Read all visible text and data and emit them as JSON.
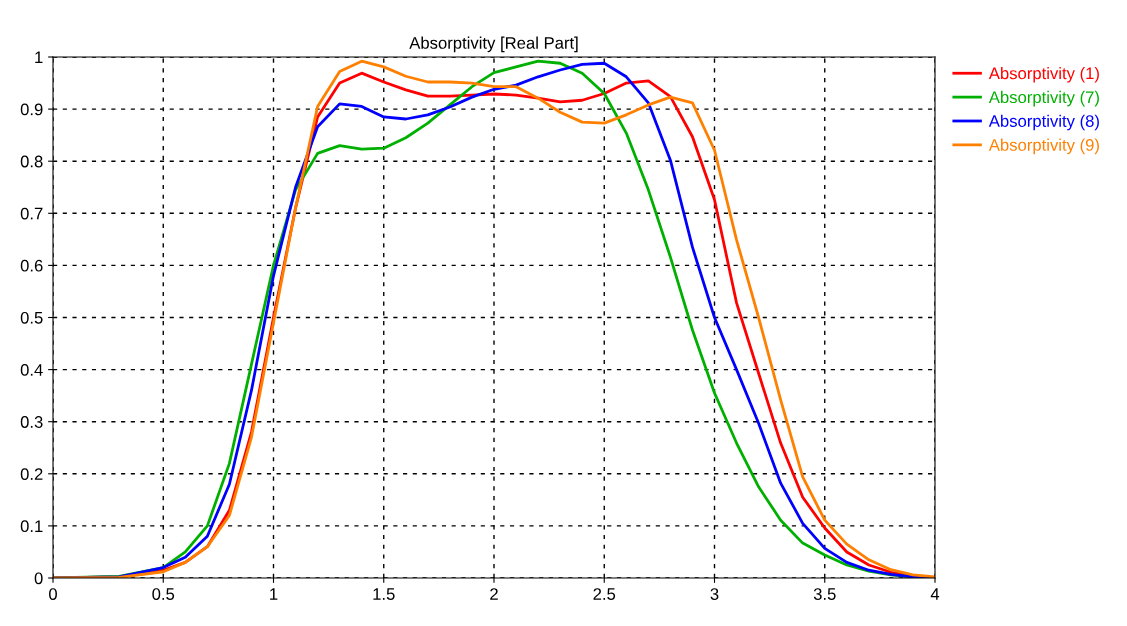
{
  "chart_data": {
    "type": "line",
    "title": "Absorptivity [Real Part]",
    "x": [
      0,
      0.3,
      0.5,
      0.6,
      0.7,
      0.8,
      0.9,
      1.0,
      1.1,
      1.2,
      1.3,
      1.4,
      1.5,
      1.6,
      1.7,
      1.8,
      1.9,
      2.0,
      2.1,
      2.2,
      2.3,
      2.4,
      2.5,
      2.6,
      2.7,
      2.8,
      2.9,
      3.0,
      3.1,
      3.2,
      3.3,
      3.4,
      3.5,
      3.6,
      3.7,
      3.8,
      3.9,
      4.0
    ],
    "series": [
      {
        "name": "Absorptivity (1)",
        "color": "#ff0000",
        "values": [
          0,
          0.002,
          0.015,
          0.03,
          0.06,
          0.13,
          0.28,
          0.5,
          0.71,
          0.885,
          0.95,
          0.969,
          0.952,
          0.937,
          0.925,
          0.925,
          0.927,
          0.929,
          0.927,
          0.921,
          0.914,
          0.917,
          0.93,
          0.95,
          0.954,
          0.924,
          0.847,
          0.726,
          0.528,
          0.393,
          0.259,
          0.155,
          0.096,
          0.05,
          0.025,
          0.011,
          0.004,
          0
        ]
      },
      {
        "name": "Absorptivity (7)",
        "color": "#00b000",
        "values": [
          0,
          0.003,
          0.02,
          0.05,
          0.1,
          0.22,
          0.41,
          0.6,
          0.745,
          0.815,
          0.83,
          0.823,
          0.825,
          0.845,
          0.873,
          0.908,
          0.943,
          0.97,
          0.981,
          0.992,
          0.988,
          0.969,
          0.93,
          0.854,
          0.745,
          0.616,
          0.476,
          0.355,
          0.259,
          0.175,
          0.111,
          0.067,
          0.044,
          0.025,
          0.013,
          0.006,
          0.002,
          0
        ]
      },
      {
        "name": "Absorptivity (8)",
        "color": "#0000ff",
        "values": [
          0,
          0.002,
          0.02,
          0.04,
          0.08,
          0.18,
          0.36,
          0.58,
          0.75,
          0.866,
          0.91,
          0.905,
          0.885,
          0.881,
          0.889,
          0.904,
          0.923,
          0.938,
          0.946,
          0.962,
          0.975,
          0.986,
          0.988,
          0.962,
          0.912,
          0.802,
          0.635,
          0.5,
          0.4,
          0.297,
          0.182,
          0.105,
          0.057,
          0.03,
          0.015,
          0.007,
          0.002,
          0
        ]
      },
      {
        "name": "Absorptivity (9)",
        "color": "#ff8000",
        "values": [
          0,
          0.001,
          0.012,
          0.03,
          0.06,
          0.12,
          0.27,
          0.49,
          0.71,
          0.905,
          0.972,
          0.992,
          0.981,
          0.963,
          0.952,
          0.952,
          0.95,
          0.943,
          0.943,
          0.921,
          0.894,
          0.875,
          0.873,
          0.889,
          0.908,
          0.923,
          0.912,
          0.821,
          0.649,
          0.5,
          0.342,
          0.194,
          0.111,
          0.065,
          0.035,
          0.016,
          0.006,
          0.002
        ]
      }
    ],
    "xlim": [
      0,
      4
    ],
    "xticks": [
      0,
      0.5,
      1,
      1.5,
      2,
      2.5,
      3,
      3.5,
      4
    ],
    "ylim": [
      0,
      1
    ],
    "yticks": [
      0,
      0.1,
      0.2,
      0.3,
      0.4,
      0.5,
      0.6,
      0.7,
      0.8,
      0.9,
      1
    ],
    "grid": true,
    "legend": "right",
    "line_style": "solid",
    "marker": "none"
  }
}
